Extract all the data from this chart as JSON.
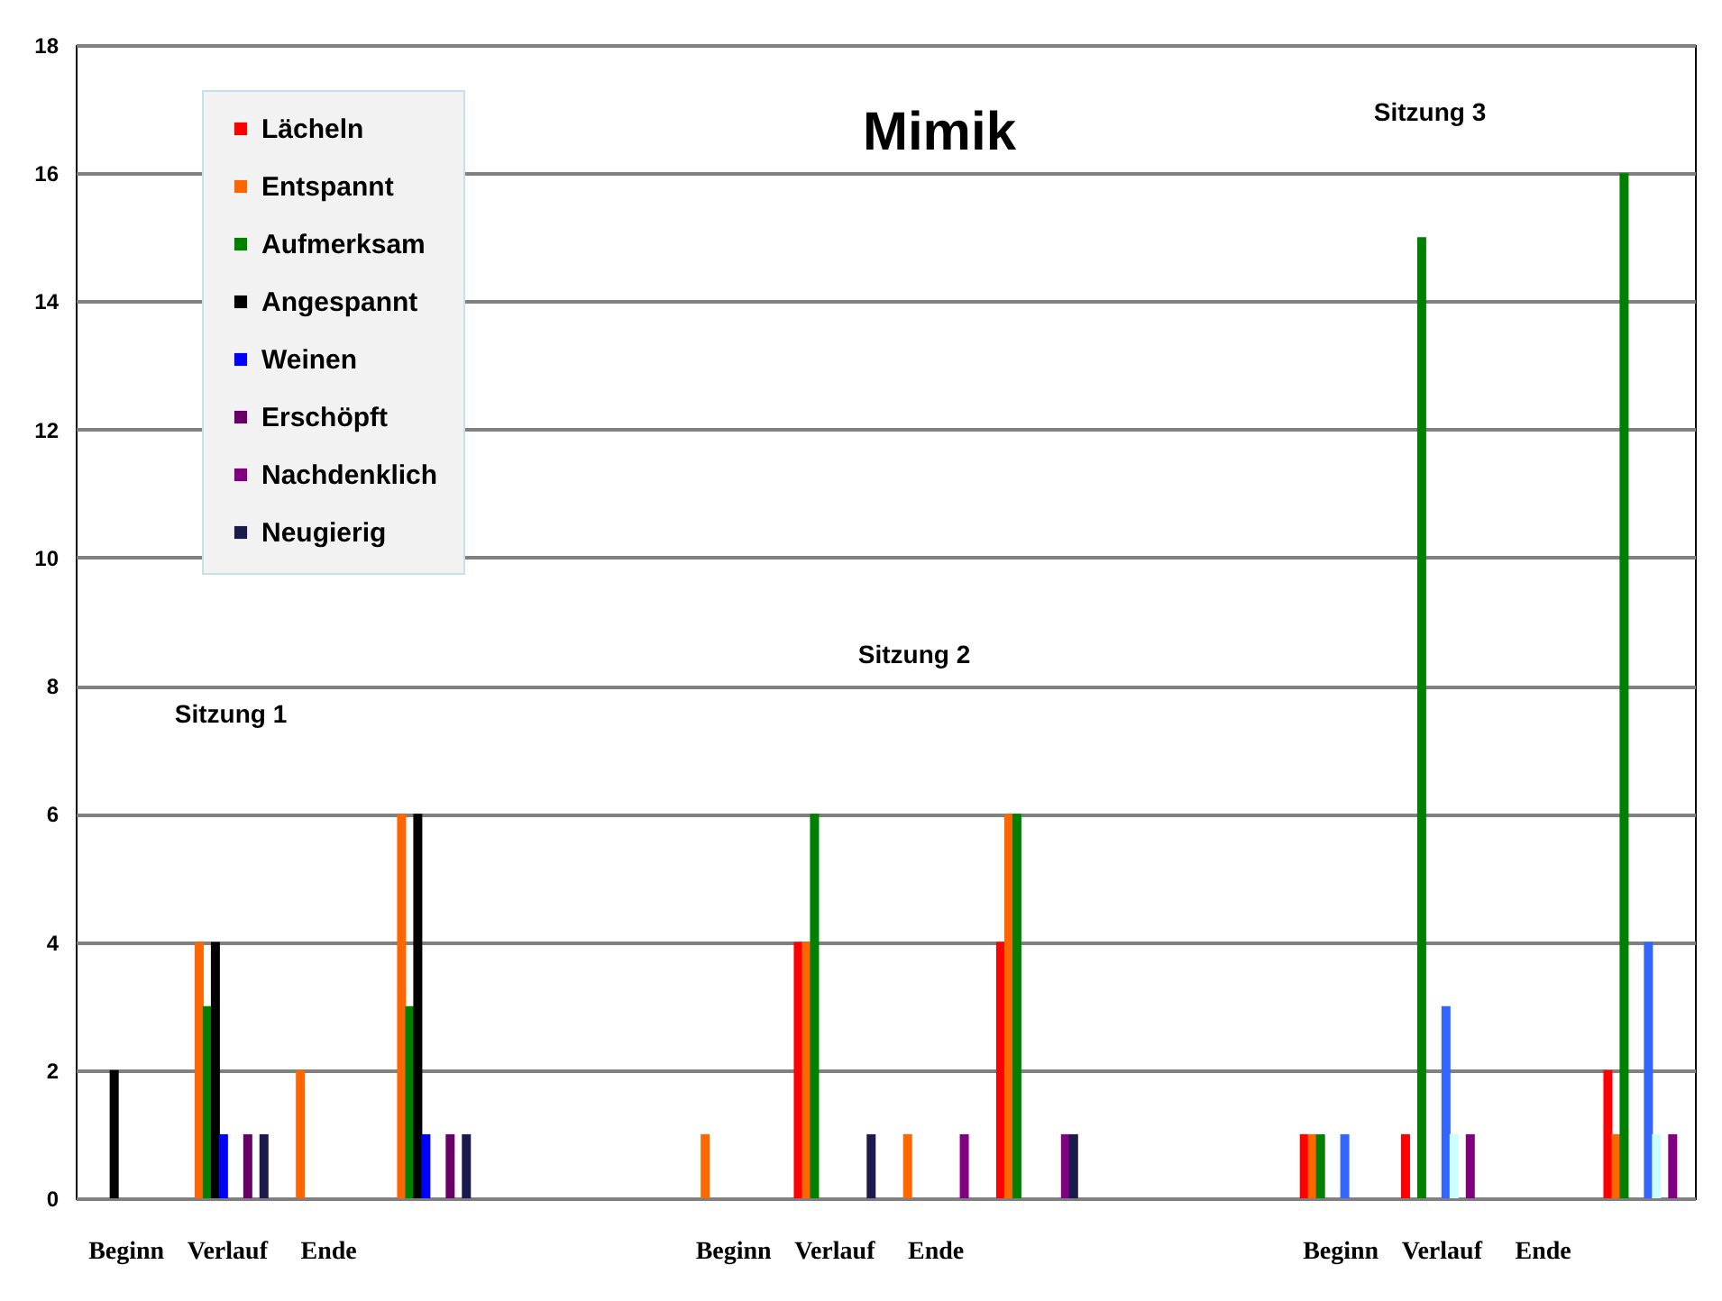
{
  "chart_data": {
    "type": "bar",
    "title": "Mimik",
    "categories": [
      "Beginn",
      "Verlauf",
      "Ende",
      null,
      null,
      null,
      "Beginn",
      "Verlauf",
      "Ende",
      null,
      null,
      null,
      "Beginn",
      "Verlauf",
      "Ende",
      null
    ],
    "series": [
      {
        "name": "Lächeln",
        "color": "#ff0000",
        "values": [
          null,
          null,
          null,
          null,
          null,
          null,
          null,
          4,
          null,
          4,
          null,
          null,
          1,
          1,
          null,
          2
        ]
      },
      {
        "name": "Entspannt",
        "color": "#ff6600",
        "values": [
          null,
          4,
          2,
          6,
          null,
          null,
          1,
          4,
          1,
          6,
          null,
          null,
          1,
          null,
          null,
          1
        ]
      },
      {
        "name": "Aufmerksam",
        "color": "#008000",
        "values": [
          null,
          3,
          null,
          3,
          null,
          null,
          null,
          6,
          null,
          6,
          null,
          null,
          1,
          15,
          null,
          16
        ]
      },
      {
        "name": "Angespannt",
        "color": "#000000",
        "values": [
          2,
          4,
          null,
          6,
          null,
          null,
          null,
          null,
          null,
          null,
          null,
          null,
          null,
          null,
          null,
          null
        ]
      },
      {
        "name": "Weinen",
        "color": "#0000ff",
        "values": [
          null,
          1,
          null,
          1,
          null,
          null,
          null,
          null,
          null,
          null,
          null,
          null,
          null,
          null,
          null,
          null
        ]
      },
      {
        "color": "#3366ff",
        "values": [
          null,
          null,
          null,
          null,
          null,
          null,
          null,
          null,
          null,
          null,
          null,
          null,
          1,
          3,
          null,
          4
        ]
      },
      {
        "color": "#ccffff",
        "values": [
          null,
          null,
          null,
          null,
          null,
          null,
          null,
          null,
          null,
          null,
          null,
          null,
          null,
          1,
          null,
          1
        ]
      },
      {
        "name": "Erschöpft",
        "color": "#660066",
        "values": [
          null,
          1,
          null,
          1,
          null,
          null,
          null,
          null,
          null,
          null,
          null,
          null,
          null,
          null,
          null,
          null
        ]
      },
      {
        "name": "Nachdenklich",
        "color": "#800080",
        "values": [
          null,
          null,
          null,
          null,
          null,
          null,
          null,
          null,
          1,
          1,
          null,
          null,
          null,
          1,
          null,
          1
        ]
      },
      {
        "name": "Neugierig",
        "color": "#1a1a4d",
        "values": [
          null,
          1,
          null,
          1,
          null,
          null,
          null,
          1,
          null,
          1,
          null,
          null,
          null,
          null,
          null,
          null
        ]
      }
    ],
    "ylim": [
      0,
      18
    ],
    "yticks": [
      0,
      2,
      4,
      6,
      8,
      10,
      12,
      14,
      16,
      18
    ],
    "grid": "y",
    "legend": "top left",
    "annotations": [
      "Sitzung 1",
      "Sitzung 2",
      "Sitzung 3"
    ]
  }
}
